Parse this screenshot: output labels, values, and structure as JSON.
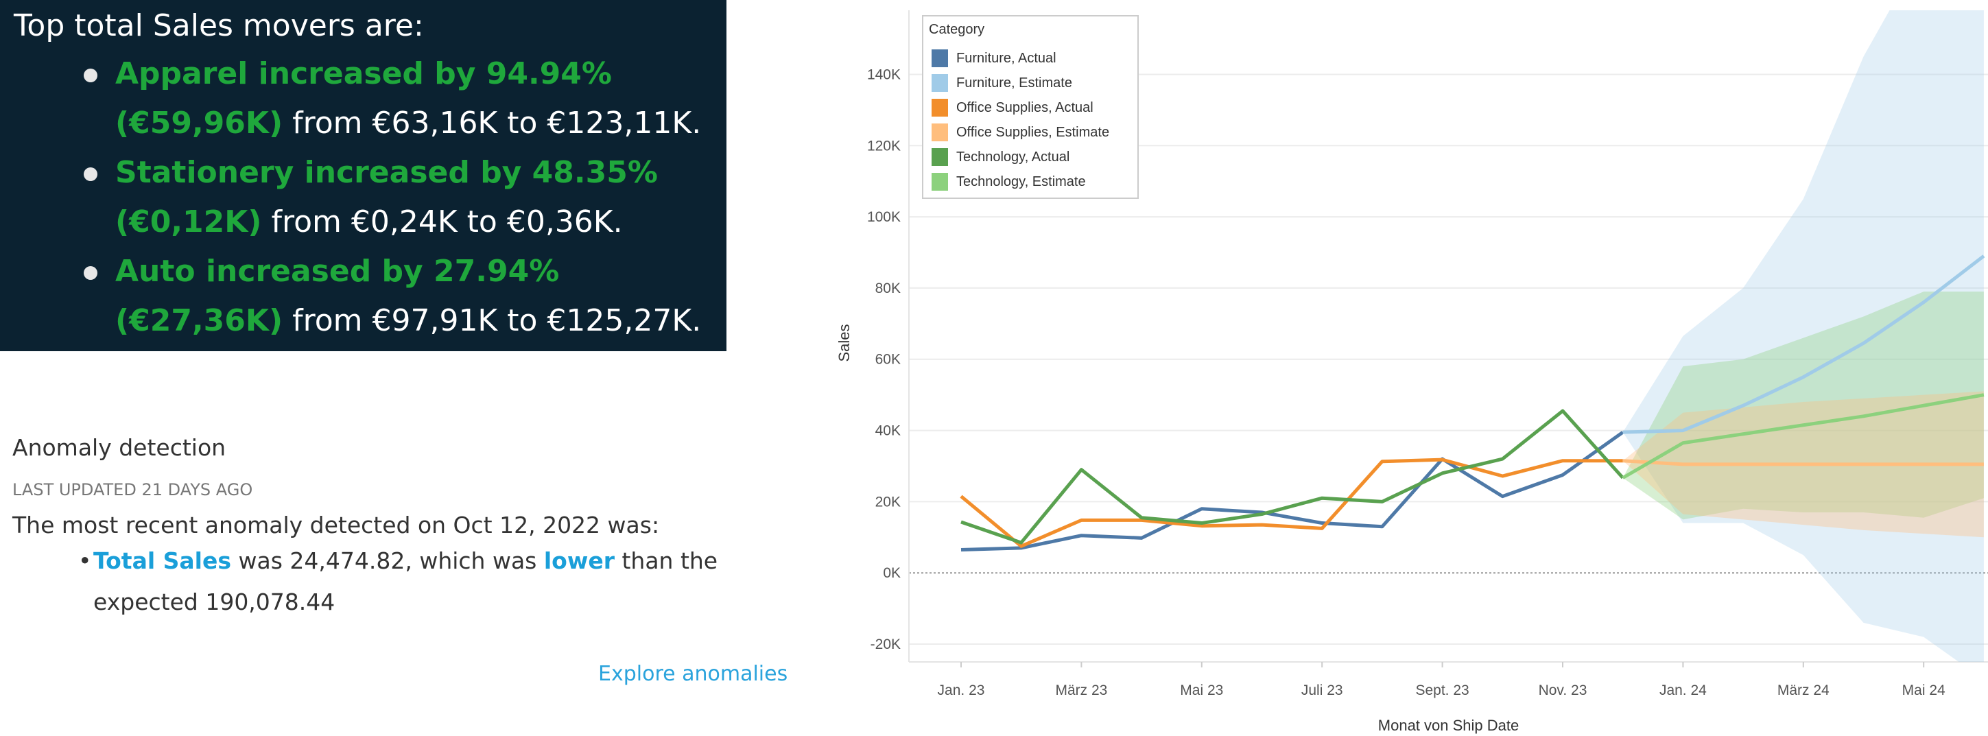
{
  "movers": {
    "heading": "Top total Sales movers  are:",
    "items": [
      {
        "green": "Apparel increased by 94.94% (€59,96K)",
        "rest": " from €63,16K to €123,11K."
      },
      {
        "green": "Stationery increased by 48.35% (€0,12K)",
        "rest": " from €0,24K to €0,36K."
      },
      {
        "green": "Auto increased by 27.94% (€27,36K)",
        "rest": " from €97,91K to €125,27K."
      }
    ]
  },
  "anomaly": {
    "title": "Anomaly detection",
    "updated": "LAST UPDATED 21 DAYS AGO",
    "intro": "The most recent   anomaly detected on Oct 12, 2022 was:",
    "metric": "Total Sales",
    "was": " was 24,474.82, which was ",
    "direction": "lower",
    "rest": " than the expected 190,078.44",
    "link": "Explore anomalies"
  },
  "chart_data": {
    "type": "line",
    "xlabel": "Monat von Ship Date",
    "ylabel": "Sales",
    "ylim": [
      -25,
      158
    ],
    "yticks": [
      -20,
      0,
      20,
      40,
      60,
      80,
      100,
      120,
      140
    ],
    "ytick_labels": [
      "-20K",
      "0K",
      "20K",
      "40K",
      "60K",
      "80K",
      "100K",
      "120K",
      "140K"
    ],
    "months": [
      "Jan. 23",
      "Feb. 23",
      "März 23",
      "Apr. 23",
      "Mai 23",
      "Jun. 23",
      "Juli 23",
      "Aug. 23",
      "Sept. 23",
      "Okt. 23",
      "Nov. 23",
      "Dez. 23",
      "Jan. 24",
      "Feb. 24",
      "März 24",
      "Apr. 24",
      "Mai 24",
      "Jun. 24"
    ],
    "xtick_labels": [
      "Jan. 23",
      "März 23",
      "Mai 23",
      "Juli 23",
      "Sept. 23",
      "Nov. 23",
      "Jan. 24",
      "März 24",
      "Mai 24"
    ],
    "legend_title": "Category",
    "series": [
      {
        "name": "Furniture, Actual",
        "color": "#4e79a7",
        "start": 0,
        "values": [
          6.5,
          7,
          10.5,
          9.8,
          18,
          17,
          14,
          13,
          32,
          21.5,
          27.5,
          39.5
        ]
      },
      {
        "name": "Furniture, Estimate",
        "color": "#a0cbe8",
        "start": 11,
        "values": [
          39.5,
          40,
          47,
          55,
          64.5,
          76,
          89
        ],
        "band_upper": [
          39.5,
          66.5,
          80,
          105,
          145,
          175,
          175
        ],
        "band_lower": [
          39.5,
          14,
          14,
          5,
          -14,
          -18,
          -30
        ]
      },
      {
        "name": "Office Supplies, Actual",
        "color": "#f28e2b",
        "start": 0,
        "values": [
          21.5,
          7.5,
          14.8,
          14.8,
          13.2,
          13.5,
          12.5,
          31.3,
          31.8,
          27.2,
          31.5,
          31.5
        ]
      },
      {
        "name": "Office Supplies, Estimate",
        "color": "#ffbe7d",
        "start": 11,
        "values": [
          31.5,
          30.5,
          30.5,
          30.5,
          30.5,
          30.5,
          30.5
        ],
        "band_upper": [
          31.5,
          45,
          46.5,
          48,
          49,
          50,
          51
        ],
        "band_lower": [
          31.5,
          16.5,
          15,
          13.5,
          12,
          11,
          10
        ]
      },
      {
        "name": "Technology, Actual",
        "color": "#59a14f",
        "start": 0,
        "values": [
          14.3,
          8.5,
          29,
          15.5,
          14,
          16.5,
          21,
          20,
          28,
          32,
          45.5,
          26.7
        ]
      },
      {
        "name": "Technology, Estimate",
        "color": "#8cd17d",
        "start": 11,
        "values": [
          26.7,
          36.5,
          39,
          41.5,
          44,
          47,
          50
        ],
        "band_upper": [
          26.7,
          58,
          60,
          66,
          72,
          79,
          79
        ],
        "band_lower": [
          26.7,
          15,
          18,
          17,
          17,
          15.5,
          21
        ]
      }
    ]
  }
}
